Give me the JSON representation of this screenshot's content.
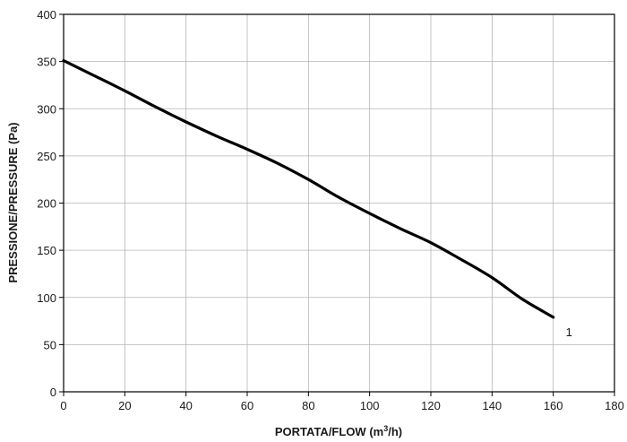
{
  "chart_data": {
    "type": "line",
    "title": "",
    "xlabel": "PORTATA/FLOW (m³/h)",
    "xlabel_parts": {
      "before": "PORTATA/FLOW (m",
      "sup": "3",
      "after": "/h)"
    },
    "ylabel": "PRESSIONE/PRESSURE (Pa)",
    "xlim": [
      0,
      180
    ],
    "ylim": [
      0,
      400
    ],
    "x_ticks": [
      0,
      20,
      40,
      60,
      80,
      100,
      120,
      140,
      160,
      180
    ],
    "y_ticks": [
      0,
      50,
      100,
      150,
      200,
      250,
      300,
      350,
      400
    ],
    "grid": true,
    "series": [
      {
        "name": "1",
        "color": "#000000",
        "x": [
          0,
          10,
          20,
          30,
          40,
          50,
          60,
          70,
          80,
          90,
          100,
          110,
          120,
          130,
          140,
          150,
          160
        ],
        "y": [
          351,
          335,
          319,
          302,
          286,
          271,
          257,
          242,
          225,
          206,
          189,
          173,
          158,
          140,
          121,
          98,
          79
        ]
      }
    ]
  }
}
